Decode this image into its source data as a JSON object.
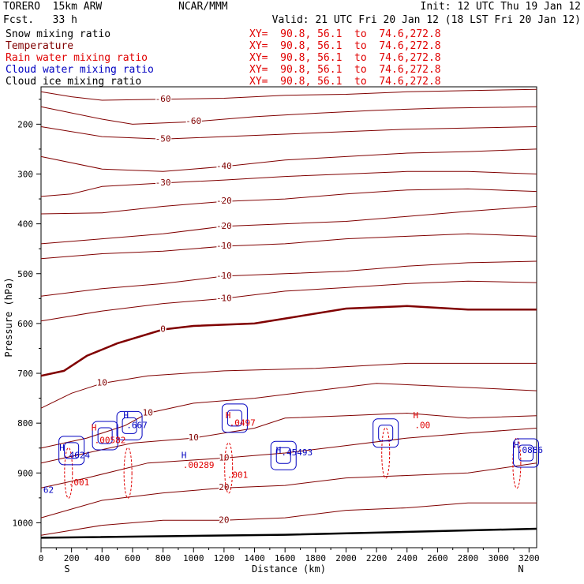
{
  "header": {
    "model": "TORERO  15km ARW",
    "fcst": "Fcst.   33 h",
    "center": "NCAR/MMM",
    "init": "Init: 12 UTC Thu 19 Jan 12",
    "valid": "Valid: 21 UTC Fri 20 Jan 12 (18 LST Fri 20 Jan 12)"
  },
  "fields": [
    {
      "name": "Snow mixing ratio",
      "color": "#000000",
      "xy": "XY=  90.8, 56.1  to  74.6,272.8"
    },
    {
      "name": "Temperature",
      "color": "#800000",
      "xy": "XY=  90.8, 56.1  to  74.6,272.8"
    },
    {
      "name": "Rain water mixing ratio",
      "color": "#e00000",
      "xy": "XY=  90.8, 56.1  to  74.6,272.8"
    },
    {
      "name": "Cloud water mixing ratio",
      "color": "#0000c0",
      "xy": "XY=  90.8, 56.1  to  74.6,272.8"
    },
    {
      "name": "Cloud ice mixing ratio",
      "color": "#000000",
      "xy": "XY=  90.8, 56.1  to  74.6,272.8"
    }
  ],
  "colors": {
    "temperature": "#800000",
    "rain": "#e00000",
    "cloud_water": "#0000c0",
    "axis": "#000000"
  },
  "chart_data": {
    "type": "line",
    "xlabel": "Distance (km)",
    "ylabel": "Pressure (hPa)",
    "xlim": [
      0,
      3250
    ],
    "ylim": [
      1050,
      125
    ],
    "x_ticks": [
      0,
      200,
      400,
      600,
      800,
      1000,
      1200,
      1400,
      1600,
      1800,
      2000,
      2200,
      2400,
      2600,
      2800,
      3000,
      3200
    ],
    "y_ticks": [
      200,
      300,
      400,
      500,
      600,
      700,
      800,
      900,
      1000
    ],
    "x_end_labels": {
      "left": "S",
      "right": "N"
    },
    "temperature_contours": [
      {
        "level": -60,
        "points": [
          [
            0,
            135
          ],
          [
            200,
            145
          ],
          [
            400,
            152
          ],
          [
            800,
            150
          ],
          [
            1200,
            148
          ],
          [
            1600,
            142
          ],
          [
            2000,
            140
          ],
          [
            2400,
            135
          ],
          [
            3250,
            130
          ]
        ]
      },
      {
        "level": -60,
        "points": [
          [
            0,
            165
          ],
          [
            400,
            190
          ],
          [
            600,
            200
          ],
          [
            1000,
            195
          ],
          [
            1400,
            185
          ],
          [
            1800,
            178
          ],
          [
            2200,
            172
          ],
          [
            2600,
            168
          ],
          [
            3250,
            165
          ]
        ]
      },
      {
        "level": -50,
        "points": [
          [
            0,
            205
          ],
          [
            400,
            225
          ],
          [
            800,
            230
          ],
          [
            1200,
            225
          ],
          [
            1600,
            220
          ],
          [
            2000,
            215
          ],
          [
            2400,
            210
          ],
          [
            3250,
            205
          ]
        ]
      },
      {
        "level": -40,
        "points": [
          [
            0,
            265
          ],
          [
            400,
            290
          ],
          [
            800,
            295
          ],
          [
            1200,
            285
          ],
          [
            1600,
            272
          ],
          [
            2000,
            265
          ],
          [
            2400,
            258
          ],
          [
            2800,
            255
          ],
          [
            3250,
            250
          ]
        ]
      },
      {
        "level": -30,
        "points": [
          [
            0,
            345
          ],
          [
            200,
            340
          ],
          [
            400,
            325
          ],
          [
            800,
            318
          ],
          [
            1200,
            312
          ],
          [
            1600,
            305
          ],
          [
            2000,
            300
          ],
          [
            2400,
            295
          ],
          [
            2800,
            295
          ],
          [
            3250,
            300
          ]
        ]
      },
      {
        "level": -20,
        "points": [
          [
            0,
            380
          ],
          [
            400,
            378
          ],
          [
            800,
            365
          ],
          [
            1200,
            355
          ],
          [
            1600,
            350
          ],
          [
            2000,
            340
          ],
          [
            2400,
            332
          ],
          [
            2800,
            330
          ],
          [
            3250,
            335
          ]
        ]
      },
      {
        "level": -20,
        "points": [
          [
            0,
            440
          ],
          [
            400,
            430
          ],
          [
            800,
            420
          ],
          [
            1200,
            405
          ],
          [
            1600,
            400
          ],
          [
            2000,
            395
          ],
          [
            2400,
            385
          ],
          [
            2800,
            375
          ],
          [
            3250,
            365
          ]
        ]
      },
      {
        "level": -10,
        "points": [
          [
            0,
            470
          ],
          [
            400,
            460
          ],
          [
            800,
            455
          ],
          [
            1200,
            445
          ],
          [
            1600,
            440
          ],
          [
            2000,
            430
          ],
          [
            2400,
            425
          ],
          [
            2800,
            420
          ],
          [
            3250,
            425
          ]
        ]
      },
      {
        "level": -10,
        "points": [
          [
            0,
            545
          ],
          [
            400,
            530
          ],
          [
            800,
            520
          ],
          [
            1200,
            505
          ],
          [
            1600,
            500
          ],
          [
            2000,
            495
          ],
          [
            2400,
            485
          ],
          [
            2800,
            478
          ],
          [
            3250,
            475
          ]
        ]
      },
      {
        "level": -10,
        "points": [
          [
            0,
            595
          ],
          [
            400,
            575
          ],
          [
            800,
            560
          ],
          [
            1200,
            550
          ],
          [
            1600,
            535
          ],
          [
            2000,
            528
          ],
          [
            2400,
            520
          ],
          [
            2800,
            515
          ],
          [
            3250,
            518
          ]
        ]
      },
      {
        "level": 0,
        "points": [
          [
            0,
            705
          ],
          [
            150,
            695
          ],
          [
            300,
            665
          ],
          [
            500,
            640
          ],
          [
            800,
            612
          ],
          [
            1000,
            605
          ],
          [
            1400,
            600
          ],
          [
            1600,
            590
          ],
          [
            2000,
            570
          ],
          [
            2400,
            565
          ],
          [
            2800,
            572
          ],
          [
            3250,
            572
          ]
        ]
      },
      {
        "level": 10,
        "points": [
          [
            0,
            770
          ],
          [
            200,
            740
          ],
          [
            400,
            720
          ],
          [
            700,
            705
          ],
          [
            1200,
            695
          ],
          [
            1800,
            690
          ],
          [
            2400,
            680
          ],
          [
            3250,
            680
          ]
        ]
      },
      {
        "level": 10,
        "points": [
          [
            0,
            850
          ],
          [
            300,
            830
          ],
          [
            550,
            805
          ],
          [
            700,
            780
          ],
          [
            1000,
            760
          ],
          [
            1400,
            750
          ],
          [
            1800,
            735
          ],
          [
            2200,
            720
          ],
          [
            3250,
            735
          ]
        ]
      },
      {
        "level": 10,
        "points": [
          [
            0,
            880
          ],
          [
            300,
            860
          ],
          [
            600,
            840
          ],
          [
            1000,
            830
          ],
          [
            1400,
            810
          ],
          [
            1600,
            790
          ],
          [
            2000,
            785
          ],
          [
            2400,
            780
          ],
          [
            2800,
            790
          ],
          [
            3250,
            785
          ]
        ]
      },
      {
        "level": 10,
        "points": [
          [
            0,
            930
          ],
          [
            300,
            910
          ],
          [
            700,
            880
          ],
          [
            1200,
            870
          ],
          [
            1600,
            860
          ],
          [
            2000,
            845
          ],
          [
            2400,
            830
          ],
          [
            2800,
            820
          ],
          [
            3250,
            810
          ]
        ]
      },
      {
        "level": 20,
        "points": [
          [
            0,
            990
          ],
          [
            400,
            955
          ],
          [
            800,
            940
          ],
          [
            1200,
            930
          ],
          [
            1600,
            925
          ],
          [
            2000,
            910
          ],
          [
            2400,
            905
          ],
          [
            2800,
            900
          ],
          [
            3250,
            880
          ]
        ]
      },
      {
        "level": 20,
        "points": [
          [
            0,
            1025
          ],
          [
            400,
            1005
          ],
          [
            800,
            995
          ],
          [
            1200,
            995
          ],
          [
            1600,
            990
          ],
          [
            2000,
            975
          ],
          [
            2400,
            970
          ],
          [
            2800,
            960
          ],
          [
            3250,
            960
          ]
        ]
      }
    ],
    "cloud_water_cells": [
      {
        "x": 200,
        "p": 855
      },
      {
        "x": 420,
        "p": 825
      },
      {
        "x": 580,
        "p": 805
      },
      {
        "x": 1270,
        "p": 790
      },
      {
        "x": 1590,
        "p": 865
      },
      {
        "x": 2260,
        "p": 820
      },
      {
        "x": 3180,
        "p": 860
      }
    ],
    "rain_cells": [
      {
        "x": 180,
        "p": 900
      },
      {
        "x": 570,
        "p": 900
      },
      {
        "x": 1230,
        "p": 890
      },
      {
        "x": 2260,
        "p": 860
      },
      {
        "x": 3120,
        "p": 880
      }
    ],
    "labels": [
      {
        "text": "H",
        "x": 120,
        "p": 855,
        "color": "#0000c0"
      },
      {
        "text": ".4624",
        "x": 150,
        "p": 870,
        "color": "#0000c0"
      },
      {
        "text": ".001",
        "x": 180,
        "p": 925,
        "color": "#e00000"
      },
      {
        "text": "H",
        "x": 330,
        "p": 815,
        "color": "#e00000"
      },
      {
        "text": ".00582",
        "x": 350,
        "p": 840,
        "color": "#e00000"
      },
      {
        "text": "H",
        "x": 540,
        "p": 790,
        "color": "#0000c0"
      },
      {
        "text": ".667",
        "x": 560,
        "p": 810,
        "color": "#0000c0"
      },
      {
        "text": "H",
        "x": 920,
        "p": 870,
        "color": "#0000c0"
      },
      {
        "text": ".00289",
        "x": 930,
        "p": 890,
        "color": "#e00000"
      },
      {
        "text": "H",
        "x": 1210,
        "p": 790,
        "color": "#e00000"
      },
      {
        "text": ".0497",
        "x": 1235,
        "p": 805,
        "color": "#e00000"
      },
      {
        "text": ".001",
        "x": 1220,
        "p": 910,
        "color": "#e00000"
      },
      {
        "text": "H",
        "x": 1540,
        "p": 860,
        "color": "#0000c0"
      },
      {
        "text": ".45493",
        "x": 1575,
        "p": 865,
        "color": "#0000c0"
      },
      {
        "text": "H",
        "x": 2440,
        "p": 790,
        "color": "#e00000"
      },
      {
        "text": ".00",
        "x": 2450,
        "p": 810,
        "color": "#e00000"
      },
      {
        "text": "H",
        "x": 3100,
        "p": 850,
        "color": "#0000c0"
      },
      {
        "text": ".0886",
        "x": 3120,
        "p": 860,
        "color": "#0000c0"
      },
      {
        "text": "62",
        "x": 15,
        "p": 940,
        "color": "#0000c0"
      }
    ]
  }
}
